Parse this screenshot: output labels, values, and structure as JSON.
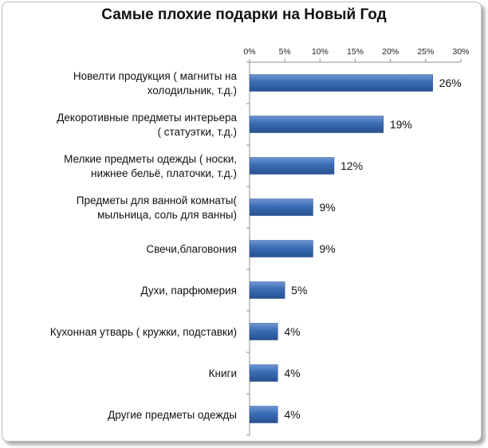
{
  "chart_data": {
    "type": "bar",
    "orientation": "horizontal",
    "title": "Самые плохие подарки на Новый Год",
    "xlabel": "",
    "ylabel": "",
    "xlim": [
      0,
      30
    ],
    "ticks": [
      "0%",
      "5%",
      "10%",
      "15%",
      "20%",
      "25%",
      "30%"
    ],
    "tick_values": [
      0,
      5,
      10,
      15,
      20,
      25,
      30
    ],
    "grid": false,
    "legend": "none",
    "bar_color": "#3a6cb5",
    "categories": [
      [
        "Новелти продукция ( магниты на",
        "холодильник, т.д.)"
      ],
      [
        "Декоротивные предметы интерьера",
        "( статуэтки, т.д.)"
      ],
      [
        "Мелкие предметы одежды ( носки,",
        "нижнее бельё, платочки, т.д.)"
      ],
      [
        "Предметы для ванной комнаты(",
        "мыльница, соль для ванны)"
      ],
      [
        "Свечи,благовония"
      ],
      [
        "Духи, парфюмерия"
      ],
      [
        "Кухонная утварь ( кружки, подставки)"
      ],
      [
        "Книги"
      ],
      [
        "Другие предметы одежды"
      ]
    ],
    "values": [
      26,
      19,
      12,
      9,
      9,
      5,
      4,
      4,
      4
    ],
    "value_labels": [
      "26%",
      "19%",
      "12%",
      "9%",
      "9%",
      "5%",
      "4%",
      "4%",
      "4%"
    ]
  }
}
